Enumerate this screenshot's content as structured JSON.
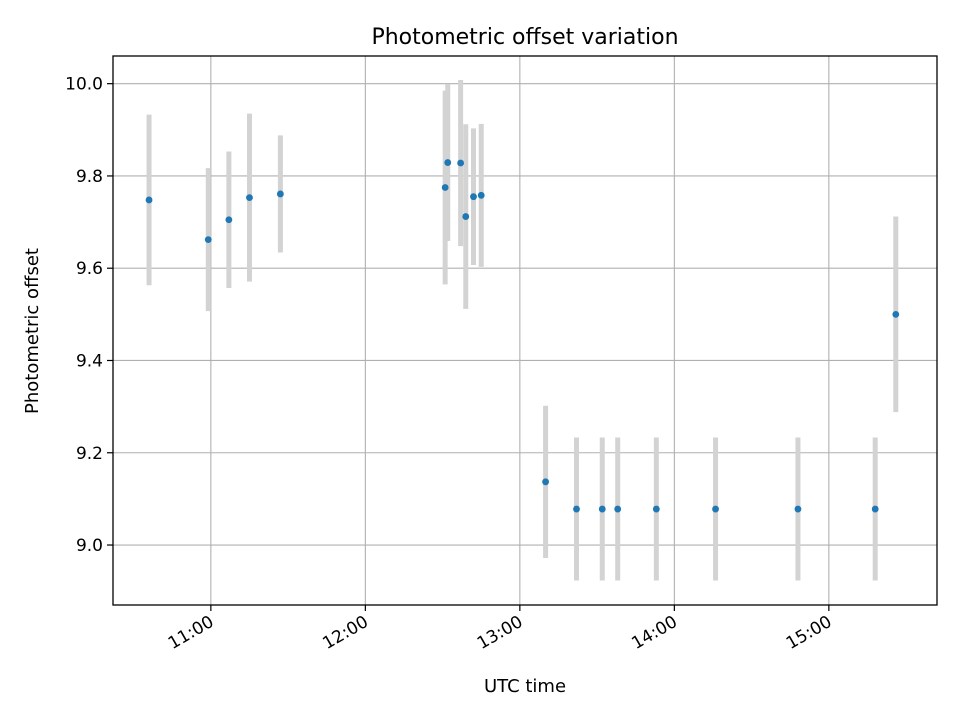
{
  "chart_data": {
    "type": "scatter",
    "title": "Photometric offset variation",
    "xlabel": "UTC time",
    "ylabel": "Photometric offset",
    "x_ticks": [
      "11:00",
      "12:00",
      "13:00",
      "14:00",
      "15:00"
    ],
    "y_ticks": [
      "9.0",
      "9.2",
      "9.4",
      "9.6",
      "9.8",
      "10.0"
    ],
    "xlim": [
      "10:22",
      "15:42"
    ],
    "ylim": [
      8.87,
      10.06
    ],
    "grid": true,
    "points": [
      {
        "x": "10:36",
        "y": 9.748,
        "err": 0.185
      },
      {
        "x": "10:59",
        "y": 9.662,
        "err": 0.155
      },
      {
        "x": "11:07",
        "y": 9.705,
        "err": 0.148
      },
      {
        "x": "11:15",
        "y": 9.753,
        "err": 0.182
      },
      {
        "x": "11:27",
        "y": 9.761,
        "err": 0.127
      },
      {
        "x": "12:31",
        "y": 9.775,
        "err": 0.21
      },
      {
        "x": "12:32",
        "y": 9.829,
        "err": 0.17
      },
      {
        "x": "12:37",
        "y": 9.828,
        "err": 0.18
      },
      {
        "x": "12:39",
        "y": 9.712,
        "err": 0.2
      },
      {
        "x": "12:42",
        "y": 9.755,
        "err": 0.148
      },
      {
        "x": "12:45",
        "y": 9.758,
        "err": 0.155
      },
      {
        "x": "13:10",
        "y": 9.137,
        "err": 0.165
      },
      {
        "x": "13:22",
        "y": 9.078,
        "err": 0.155
      },
      {
        "x": "13:32",
        "y": 9.078,
        "err": 0.155
      },
      {
        "x": "13:38",
        "y": 9.078,
        "err": 0.155
      },
      {
        "x": "13:53",
        "y": 9.078,
        "err": 0.155
      },
      {
        "x": "14:16",
        "y": 9.078,
        "err": 0.155
      },
      {
        "x": "14:48",
        "y": 9.078,
        "err": 0.155
      },
      {
        "x": "15:18",
        "y": 9.078,
        "err": 0.155
      },
      {
        "x": "15:26",
        "y": 9.5,
        "err": 0.212
      }
    ],
    "colors": {
      "point": "#1f77b4",
      "errorbar": "#d3d3d3",
      "grid": "#b0b0b0",
      "axes": "#000000"
    }
  }
}
